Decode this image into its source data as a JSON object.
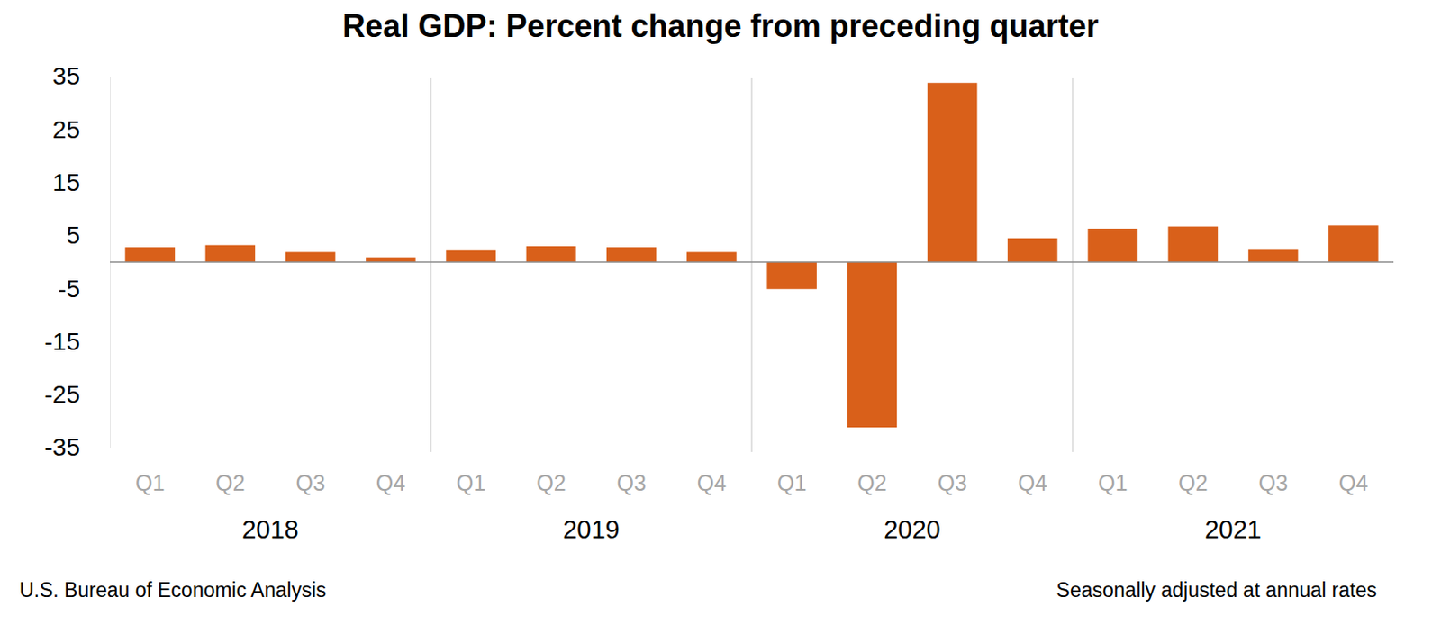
{
  "chart_data": {
    "type": "bar",
    "title": "Real GDP:  Percent change from preceding quarter",
    "categories": [
      "Q1",
      "Q2",
      "Q3",
      "Q4",
      "Q1",
      "Q2",
      "Q3",
      "Q4",
      "Q1",
      "Q2",
      "Q3",
      "Q4",
      "Q1",
      "Q2",
      "Q3",
      "Q4"
    ],
    "category_groups": [
      "2018",
      "2019",
      "2020",
      "2021"
    ],
    "values": [
      2.8,
      3.2,
      1.9,
      0.9,
      2.2,
      3.0,
      2.8,
      1.9,
      -5.1,
      -31.2,
      33.8,
      4.5,
      6.3,
      6.7,
      2.3,
      6.9
    ],
    "color": "#d9601a",
    "ylim": [
      -35,
      35
    ],
    "yticks": [
      -35,
      -25,
      -15,
      -5,
      5,
      15,
      25,
      35
    ],
    "grid": false,
    "source": "U.S. Bureau of Economic Analysis",
    "note": "Seasonally adjusted at annual rates"
  }
}
